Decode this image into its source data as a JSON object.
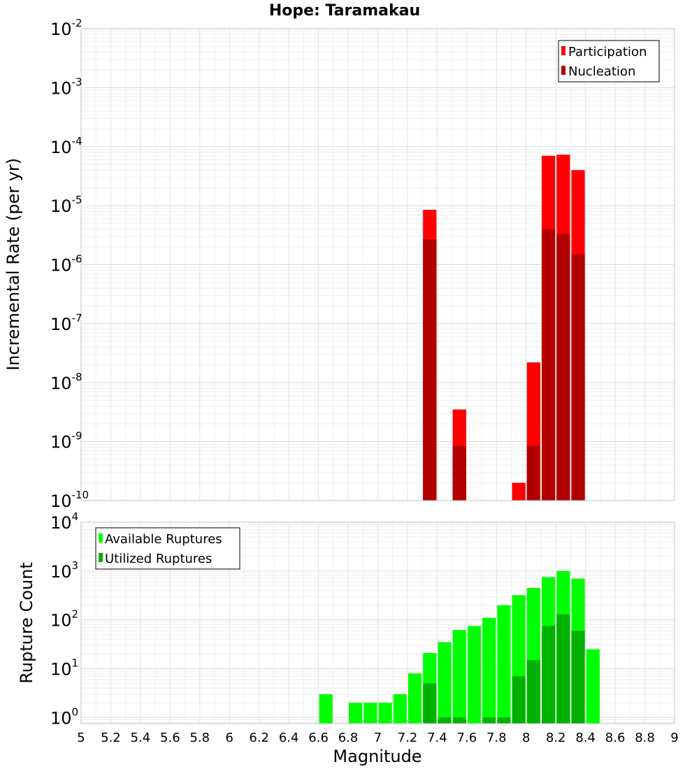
{
  "chart_data": [
    {
      "type": "bar",
      "title": "Hope: Taramakau",
      "ylabel": "Incremental Rate (per yr)",
      "xlabel": "",
      "xlim": [
        5,
        9
      ],
      "ylim": [
        1e-10,
        0.01
      ],
      "yscale": "log",
      "y_tick_exponents": [
        -10,
        -9,
        -8,
        -7,
        -6,
        -5,
        -4,
        -3,
        -2
      ],
      "grid": true,
      "legend_position": "top-right",
      "bar_width": 0.1,
      "colors": {
        "Participation": "#ff0000",
        "Nucleation": "#b20000"
      },
      "series": [
        {
          "name": "Participation",
          "x": [
            7.35,
            7.55,
            7.95,
            8.05,
            8.15,
            8.25,
            8.35
          ],
          "values": [
            8.5e-06,
            3.5e-09,
            2e-10,
            2.2e-08,
            7e-05,
            7.3e-05,
            4e-05
          ]
        },
        {
          "name": "Nucleation",
          "x": [
            7.35,
            7.55,
            8.05,
            8.15,
            8.25,
            8.35
          ],
          "values": [
            2.7e-06,
            8.5e-10,
            8.5e-10,
            4e-06,
            3.3e-06,
            1.5e-06
          ]
        }
      ]
    },
    {
      "type": "bar",
      "title": "",
      "ylabel": "Rupture Count",
      "xlabel": "Magnitude",
      "xlim": [
        5,
        9
      ],
      "ylim": [
        0.75,
        10000
      ],
      "yscale": "log",
      "y_tick_exponents": [
        0,
        1,
        2,
        3,
        4
      ],
      "x_ticks": [
        "5",
        "5.2",
        "5.4",
        "5.6",
        "5.8",
        "6",
        "6.2",
        "6.4",
        "6.6",
        "6.8",
        "7",
        "7.2",
        "7.4",
        "7.6",
        "7.8",
        "8",
        "8.2",
        "8.4",
        "8.6",
        "8.8",
        "9"
      ],
      "grid": true,
      "legend_position": "top-left",
      "bar_width": 0.1,
      "colors": {
        "Available Ruptures": "#00ff00",
        "Utilized Ruptures": "#00b200"
      },
      "series": [
        {
          "name": "Available Ruptures",
          "x": [
            6.65,
            6.85,
            6.95,
            7.05,
            7.15,
            7.25,
            7.35,
            7.45,
            7.55,
            7.65,
            7.75,
            7.85,
            7.95,
            8.05,
            8.15,
            8.25,
            8.35,
            8.45
          ],
          "values": [
            3,
            2,
            2,
            2,
            3,
            8,
            21,
            35,
            62,
            75,
            110,
            200,
            320,
            450,
            750,
            1000,
            700,
            25
          ]
        },
        {
          "name": "Utilized Ruptures",
          "x": [
            7.35,
            7.45,
            7.55,
            7.75,
            7.85,
            7.95,
            8.05,
            8.15,
            8.25,
            8.35
          ],
          "values": [
            5,
            1,
            1,
            1,
            1,
            7,
            15,
            75,
            130,
            60
          ]
        }
      ]
    }
  ]
}
